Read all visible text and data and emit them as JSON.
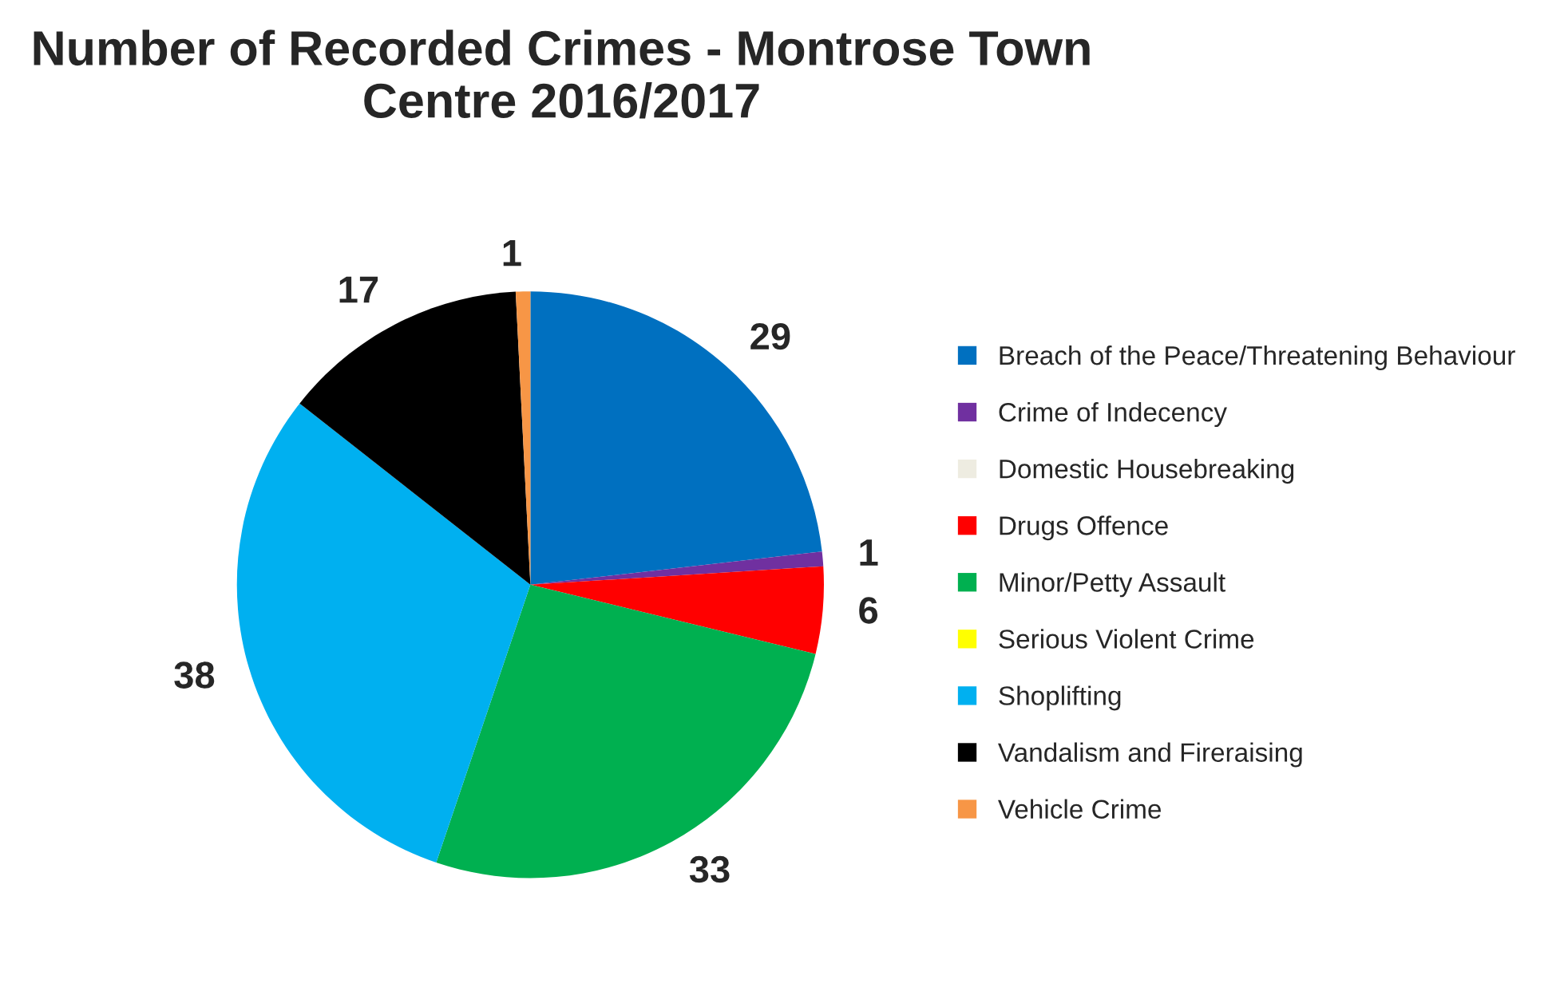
{
  "chart_data": {
    "type": "pie",
    "title": "Number of Recorded Crimes - Montrose Town Centre 2016/2017",
    "categories": [
      "Breach of the Peace/Threatening Behaviour",
      "Crime of Indecency",
      "Domestic Housebreaking",
      "Drugs Offence",
      "Minor/Petty Assault",
      "Serious Violent Crime",
      "Shoplifting",
      "Vandalism and Fireraising",
      "Vehicle Crime"
    ],
    "values": [
      29,
      1,
      0,
      6,
      33,
      0,
      38,
      17,
      1
    ],
    "value_labels": [
      "29",
      "1",
      null,
      "6",
      "33",
      null,
      "38",
      "17",
      "1"
    ],
    "colors": [
      "#0070c0",
      "#7030a0",
      "#eeece1",
      "#ff0000",
      "#00b050",
      "#ffff00",
      "#00b0f0",
      "#000000",
      "#f79646"
    ],
    "legend": "right"
  }
}
